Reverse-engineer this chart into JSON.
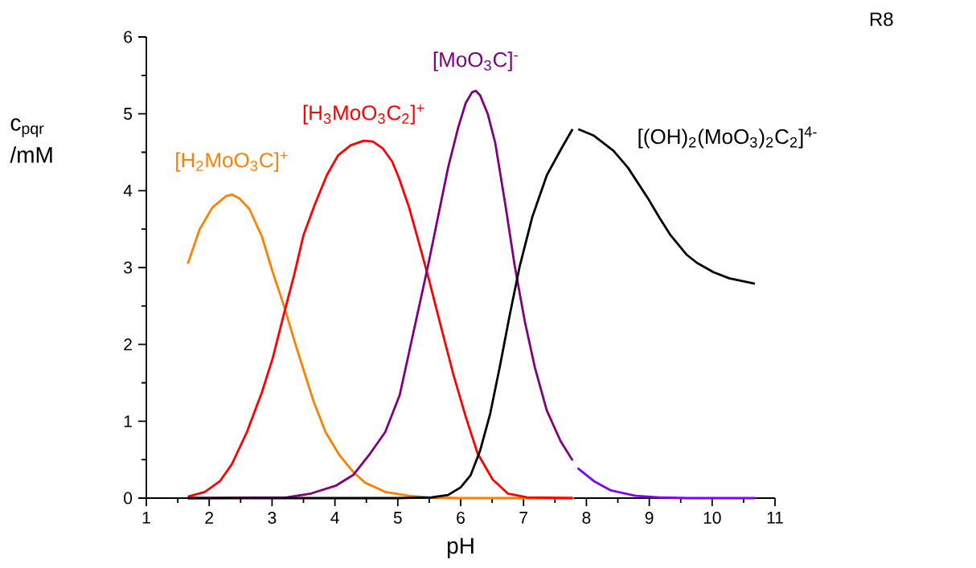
{
  "chart_data": {
    "type": "line",
    "xlabel": "pH",
    "ylabel": "c$_{pqr}$ /mM",
    "annotations": [
      "R8"
    ],
    "xlim": [
      1,
      11
    ],
    "ylim": [
      0,
      6
    ],
    "xticks": [
      1,
      2,
      3,
      4,
      5,
      6,
      7,
      8,
      9,
      10,
      11
    ],
    "yticks": [
      0,
      1,
      2,
      3,
      4,
      5,
      6
    ],
    "series": [
      {
        "name": "[H$_{2}$MoO$_{3}$C]$^{+}$",
        "color": "#ff8000",
        "x": [
          1.66,
          1.85,
          2.05,
          2.27,
          2.36,
          2.48,
          2.64,
          2.84,
          3.01,
          3.19,
          3.38,
          3.66,
          3.85,
          4.07,
          4.29,
          4.48,
          4.8,
          5.18,
          5.5,
          6.0,
          7.8
        ],
        "values": [
          3.05,
          3.5,
          3.78,
          3.93,
          3.95,
          3.9,
          3.76,
          3.4,
          2.94,
          2.5,
          1.98,
          1.26,
          0.86,
          0.56,
          0.34,
          0.2,
          0.08,
          0.03,
          0.01,
          0,
          0
        ]
      },
      {
        "name": "[H$_{3}$MoO$_{3}$C$_{2}$]$^{+}$",
        "color": "#ff0000",
        "x": [
          1.66,
          1.93,
          2.17,
          2.36,
          2.6,
          2.84,
          3.01,
          3.19,
          3.35,
          3.5,
          3.68,
          3.87,
          4.05,
          4.25,
          4.46,
          4.6,
          4.76,
          4.91,
          5.02,
          5.18,
          5.33,
          5.49,
          5.69,
          5.88,
          6.08,
          6.27,
          6.51,
          6.75,
          7.06,
          7.78
        ],
        "values": [
          0.02,
          0.08,
          0.22,
          0.44,
          0.86,
          1.38,
          1.82,
          2.4,
          2.9,
          3.42,
          3.82,
          4.2,
          4.46,
          4.59,
          4.65,
          4.64,
          4.55,
          4.38,
          4.16,
          3.78,
          3.34,
          2.86,
          2.22,
          1.62,
          1.06,
          0.58,
          0.24,
          0.06,
          0.01,
          0
        ]
      },
      {
        "name": "[MoO$_{3}$C]$^{-}$",
        "color": "#800080",
        "x": [
          1.66,
          3.23,
          3.62,
          4.01,
          4.29,
          4.56,
          4.8,
          5.03,
          5.18,
          5.33,
          5.49,
          5.65,
          5.8,
          5.96,
          6.08,
          6.18,
          6.24,
          6.31,
          6.43,
          6.55,
          6.71,
          6.86,
          7.02,
          7.18,
          7.37,
          7.59,
          7.78
        ],
        "values": [
          0,
          0.01,
          0.06,
          0.16,
          0.3,
          0.58,
          0.86,
          1.34,
          1.9,
          2.46,
          3.06,
          3.7,
          4.3,
          4.82,
          5.14,
          5.28,
          5.3,
          5.24,
          5.0,
          4.62,
          3.82,
          3.02,
          2.3,
          1.7,
          1.14,
          0.74,
          0.49
        ]
      },
      {
        "color": "#8000ff",
        "x": [
          7.86,
          8.12,
          8.39,
          8.78,
          9.16,
          9.6,
          10.68
        ],
        "values": [
          0.39,
          0.22,
          0.1,
          0.03,
          0.01,
          0,
          0
        ]
      },
      {
        "name": "[(OH)$_{2}$(MoO$_{3}$)$_{2}$C$_{2}$]$^{4-}$",
        "color": "#000000",
        "x": [
          1.66,
          5.0,
          5.53,
          5.8,
          6.0,
          6.16,
          6.31,
          6.47,
          6.63,
          6.78,
          6.94,
          7.14,
          7.37,
          7.61,
          7.78
        ],
        "values": [
          0,
          0,
          0.01,
          0.04,
          0.14,
          0.3,
          0.62,
          1.1,
          1.74,
          2.38,
          3.02,
          3.66,
          4.2,
          4.56,
          4.8
        ]
      },
      {
        "color": "#000000",
        "x": [
          7.87,
          8.11,
          8.43,
          8.66,
          8.98,
          9.16,
          9.33,
          9.59,
          9.76,
          10.02,
          10.27,
          10.68
        ],
        "values": [
          4.8,
          4.72,
          4.52,
          4.3,
          3.9,
          3.65,
          3.43,
          3.17,
          3.06,
          2.94,
          2.86,
          2.79
        ]
      }
    ]
  }
}
